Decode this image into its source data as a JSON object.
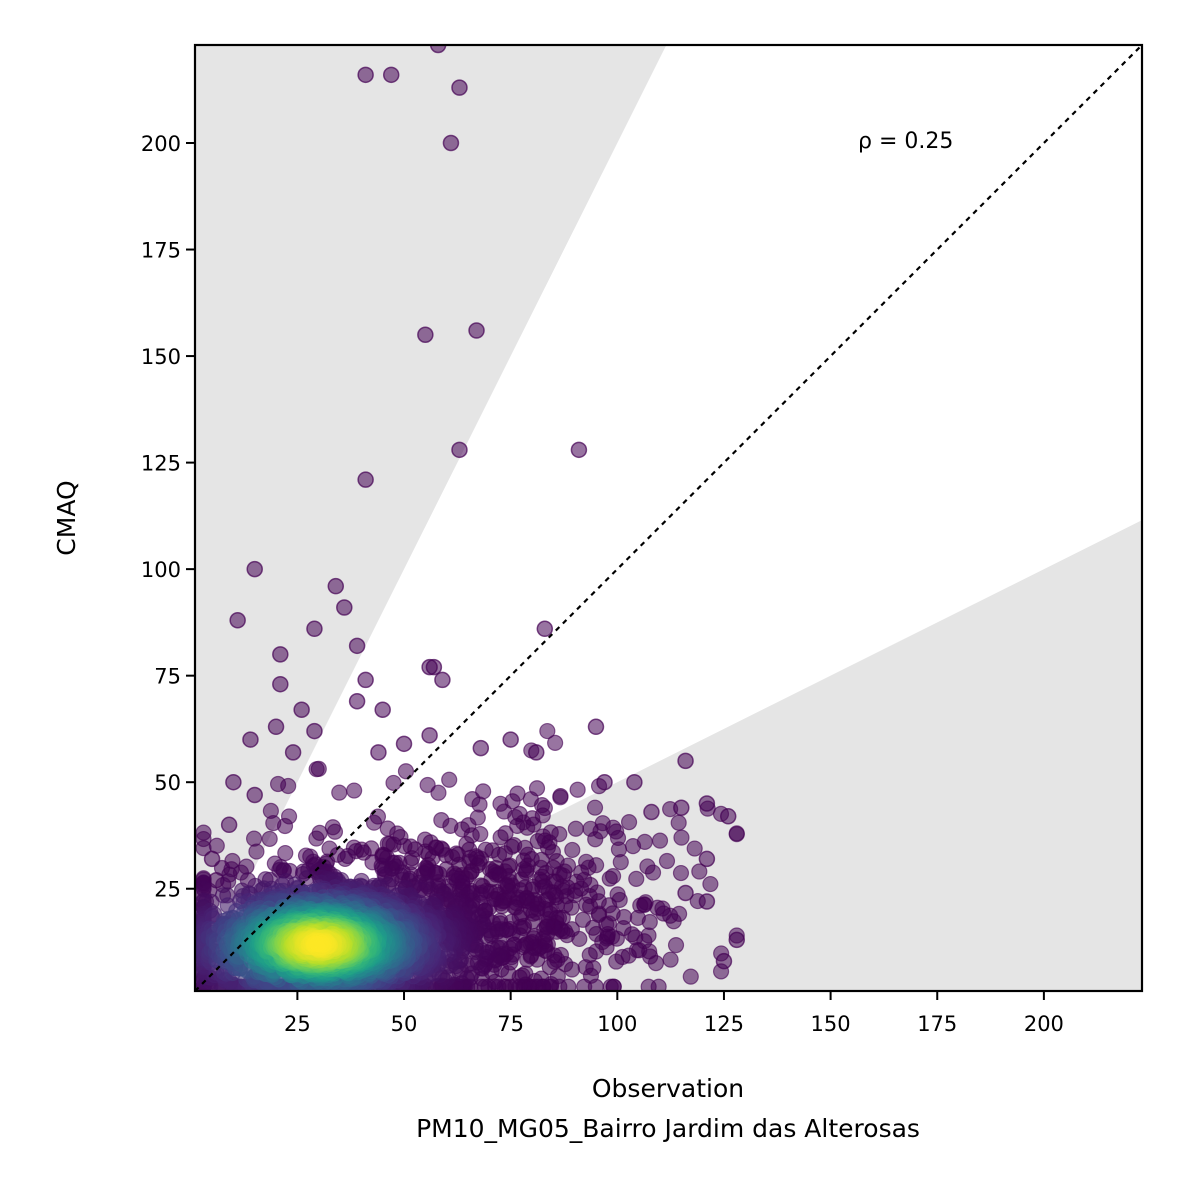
{
  "chart_data": {
    "type": "scatter",
    "xlabel": "Observation",
    "subtitle": "PM10_MG05_Bairro Jardim das Alterosas",
    "ylabel": "CMAQ",
    "xlim": [
      1,
      223
    ],
    "ylim": [
      1,
      223
    ],
    "xticks": [
      25,
      50,
      75,
      100,
      125,
      150,
      175,
      200
    ],
    "yticks": [
      25,
      50,
      75,
      100,
      125,
      150,
      175,
      200
    ],
    "annotation": "ρ = 0.25",
    "reference_line": "1:1 dotted",
    "shaded_regions": "outside factor-of-2 band (y > 2x and y < 0.5x)",
    "colormap": "viridis (point density)",
    "outliers": [
      {
        "x": 58,
        "y": 223
      },
      {
        "x": 41,
        "y": 216
      },
      {
        "x": 47,
        "y": 216
      },
      {
        "x": 63,
        "y": 213
      },
      {
        "x": 61,
        "y": 200
      },
      {
        "x": 55,
        "y": 155
      },
      {
        "x": 67,
        "y": 156
      },
      {
        "x": 63,
        "y": 128
      },
      {
        "x": 91,
        "y": 128
      },
      {
        "x": 41,
        "y": 121
      },
      {
        "x": 15,
        "y": 100
      },
      {
        "x": 34,
        "y": 96
      },
      {
        "x": 36,
        "y": 91
      },
      {
        "x": 11,
        "y": 88
      },
      {
        "x": 29,
        "y": 86
      },
      {
        "x": 83,
        "y": 86
      },
      {
        "x": 39,
        "y": 82
      },
      {
        "x": 21,
        "y": 80
      },
      {
        "x": 56,
        "y": 77
      },
      {
        "x": 57,
        "y": 77
      },
      {
        "x": 41,
        "y": 74
      },
      {
        "x": 59,
        "y": 74
      },
      {
        "x": 21,
        "y": 73
      },
      {
        "x": 39,
        "y": 69
      },
      {
        "x": 26,
        "y": 67
      },
      {
        "x": 45,
        "y": 67
      },
      {
        "x": 20,
        "y": 63
      },
      {
        "x": 29,
        "y": 62
      },
      {
        "x": 56,
        "y": 61
      },
      {
        "x": 95,
        "y": 63
      },
      {
        "x": 14,
        "y": 60
      },
      {
        "x": 116,
        "y": 55
      },
      {
        "x": 104,
        "y": 50
      },
      {
        "x": 121,
        "y": 45
      },
      {
        "x": 126,
        "y": 42
      },
      {
        "x": 115,
        "y": 44
      },
      {
        "x": 121,
        "y": 32
      },
      {
        "x": 121,
        "y": 22
      },
      {
        "x": 116,
        "y": 24
      },
      {
        "x": 128,
        "y": 13
      },
      {
        "x": 125,
        "y": 8
      },
      {
        "x": 5,
        "y": 32
      },
      {
        "x": 6,
        "y": 27
      },
      {
        "x": 9,
        "y": 40
      },
      {
        "x": 10,
        "y": 50
      },
      {
        "x": 15,
        "y": 47
      },
      {
        "x": 24,
        "y": 57
      },
      {
        "x": 44,
        "y": 57
      },
      {
        "x": 50,
        "y": 59
      },
      {
        "x": 75,
        "y": 60
      },
      {
        "x": 81,
        "y": 57
      },
      {
        "x": 68,
        "y": 58
      },
      {
        "x": 97,
        "y": 50
      },
      {
        "x": 108,
        "y": 43
      }
    ]
  }
}
